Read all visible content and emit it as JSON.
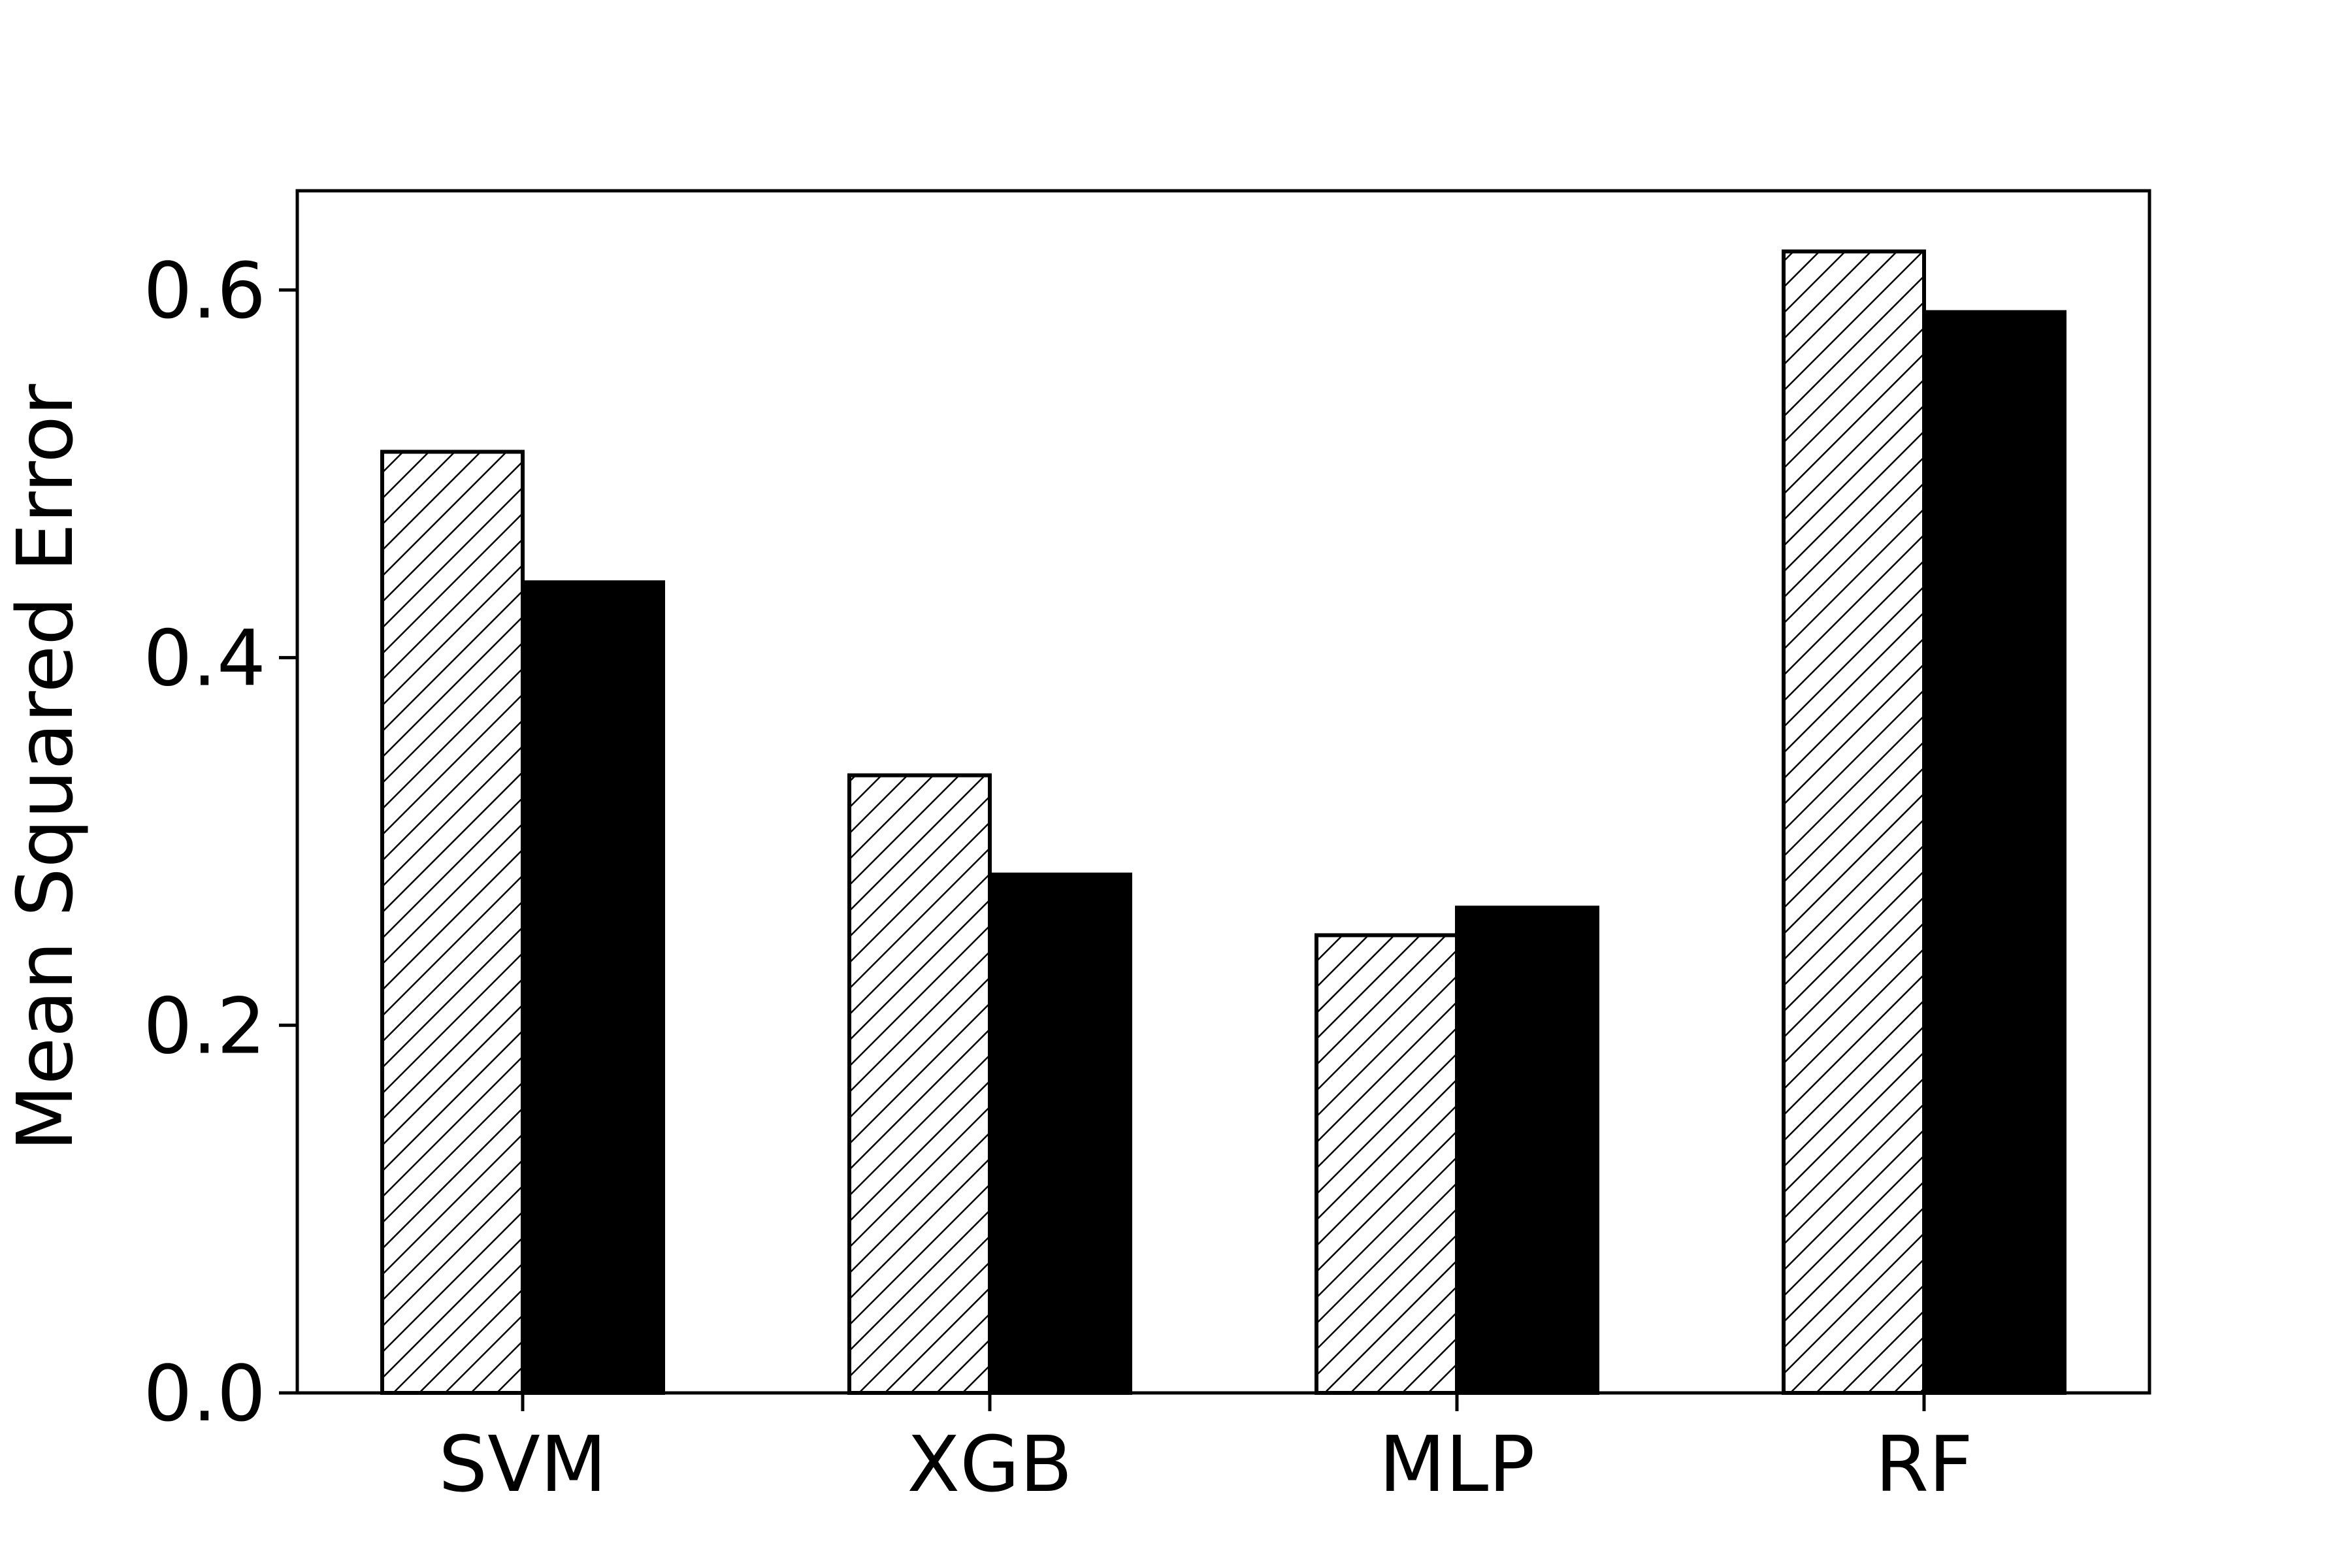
{
  "chart_data": {
    "type": "bar",
    "title": "",
    "xlabel": "",
    "ylabel": "Mean Squared Error",
    "categories": [
      "SVM",
      "XGB",
      "MLP",
      "RF"
    ],
    "series": [
      {
        "values": [
          0.512,
          0.336,
          0.249,
          0.621
        ],
        "fill": "hatched"
      },
      {
        "values": [
          0.441,
          0.282,
          0.264,
          0.588
        ],
        "fill": "solid"
      }
    ],
    "ylim": [
      0.0,
      0.654
    ],
    "yticks": [
      0.0,
      0.2,
      0.4,
      0.6
    ],
    "ytick_labels": [
      "0.0",
      "0.2",
      "0.4",
      "0.6"
    ],
    "grid": false,
    "legend": "none",
    "colors": {
      "bar_edge": "#000000",
      "solid_fill": "#000000",
      "hatch_fill": "#ffffff",
      "axis": "#000000"
    }
  }
}
